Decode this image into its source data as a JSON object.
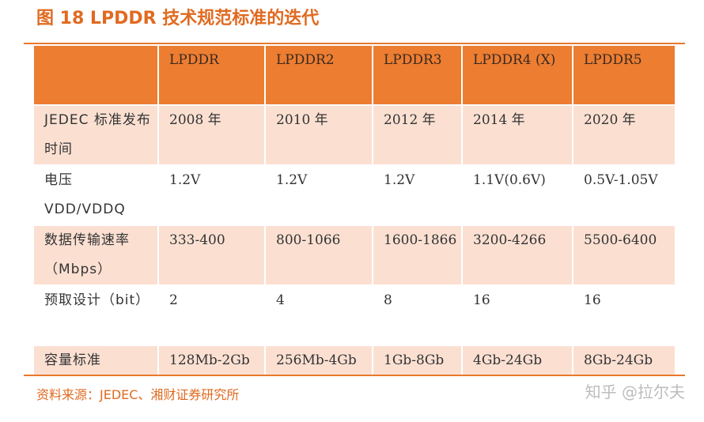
{
  "title": "图 18 LPDDR 技术规范标准的迭代",
  "table": {
    "headers": [
      "",
      "LPDDR",
      "LPDDR2",
      "LPDDR3",
      "LPDDR4 (X)",
      "LPDDR5"
    ],
    "rows": [
      {
        "label": "JEDEC 标准发布时间",
        "values": [
          "2008 年",
          "2010 年",
          "2012 年",
          "2014 年",
          "2020 年"
        ]
      },
      {
        "label": "电压 VDD/VDDQ",
        "values": [
          "1.2V",
          "1.2V",
          "1.2V",
          "1.1V(0.6V)",
          "0.5V-1.05V"
        ]
      },
      {
        "label": "数据传输速率（Mbps）",
        "values": [
          "333-400",
          "800-1066",
          "1600-1866",
          "3200-4266",
          "5500-6400"
        ]
      },
      {
        "label": "预取设计（bit）",
        "values": [
          "2",
          "4",
          "8",
          "16",
          "16"
        ]
      },
      {
        "label": "容量标准",
        "values": [
          "128Mb-2Gb",
          "256Mb-4Gb",
          "1Gb-8Gb",
          "4Gb-24Gb",
          "8Gb-24Gb"
        ]
      }
    ]
  },
  "source": "资料来源：JEDEC、湘财证券研究所",
  "watermark": "知乎 @拉尔夫"
}
